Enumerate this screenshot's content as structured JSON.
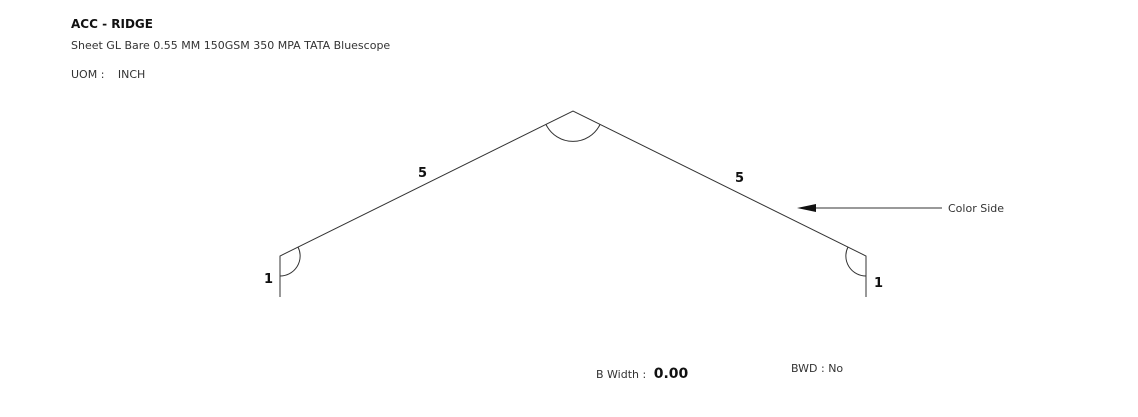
{
  "header": {
    "title": "ACC - RIDGE",
    "subtitle": "Sheet GL Bare 0.55 MM 150GSM 350 MPA TATA Bluescope",
    "uom_label": "UOM :",
    "uom_value": "INCH"
  },
  "profile": {
    "left_return_length": "1",
    "left_slope_length": "5",
    "right_slope_length": "5",
    "right_return_length": "1",
    "color_side_label": "Color Side"
  },
  "footer": {
    "bwidth_label": "B Width :",
    "bwidth_value": "0.00",
    "bwd_label": "BWD : No"
  },
  "colors": {
    "line": "#333333",
    "text": "#222222"
  }
}
